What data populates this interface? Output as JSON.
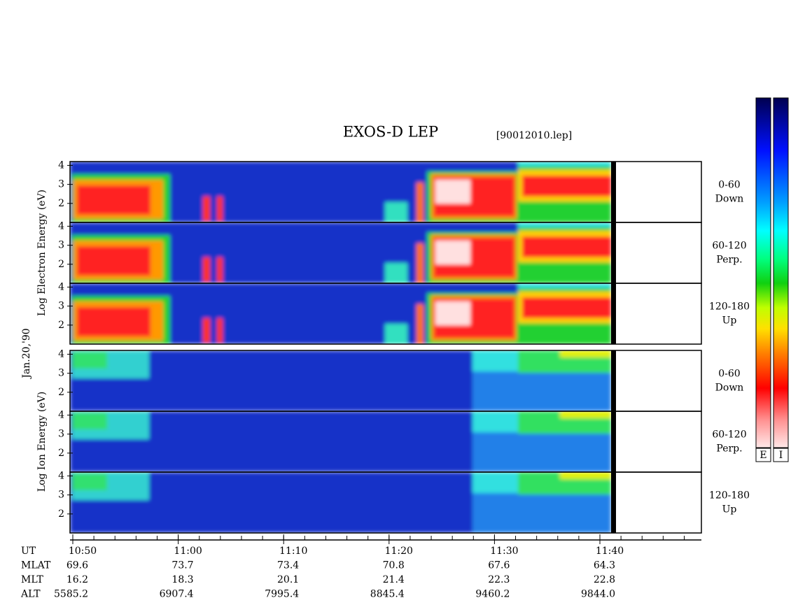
{
  "title": "EXOS-D LEP",
  "file": "[90012010.lep]",
  "date": "Jan.20,'90",
  "ylim": [
    1,
    4.2
  ],
  "yticks": [
    2,
    3,
    4
  ],
  "groups": [
    {
      "axis_label": "Log Electron Energy (eV)",
      "panels": [
        {
          "lines": [
            "0-60",
            "Down"
          ]
        },
        {
          "lines": [
            "60-120",
            "Perp."
          ]
        },
        {
          "lines": [
            "120-180",
            "Up"
          ]
        }
      ]
    },
    {
      "axis_label": "Log Ion Energy (eV)",
      "panels": [
        {
          "lines": [
            "0-60",
            "Down"
          ]
        },
        {
          "lines": [
            "60-120",
            "Perp."
          ]
        },
        {
          "lines": [
            "120-180",
            "Up"
          ]
        }
      ]
    }
  ],
  "time_axis": {
    "ticks": [
      "10:50",
      "11:00",
      "11:10",
      "11:20",
      "11:30",
      "11:40"
    ],
    "rows": [
      {
        "name": "UT"
      },
      {
        "name": "MLAT",
        "values": [
          "69.6",
          "73.7",
          "73.4",
          "70.8",
          "67.6",
          "64.3"
        ]
      },
      {
        "name": "MLT",
        "values": [
          "16.2",
          "18.3",
          "20.1",
          "21.4",
          "22.3",
          "22.8"
        ]
      },
      {
        "name": "ALT",
        "values": [
          "5585.2",
          "6907.4",
          "7995.4",
          "8845.4",
          "9460.2",
          "9844.0"
        ]
      }
    ]
  },
  "colorbars": [
    "E",
    "I"
  ]
}
